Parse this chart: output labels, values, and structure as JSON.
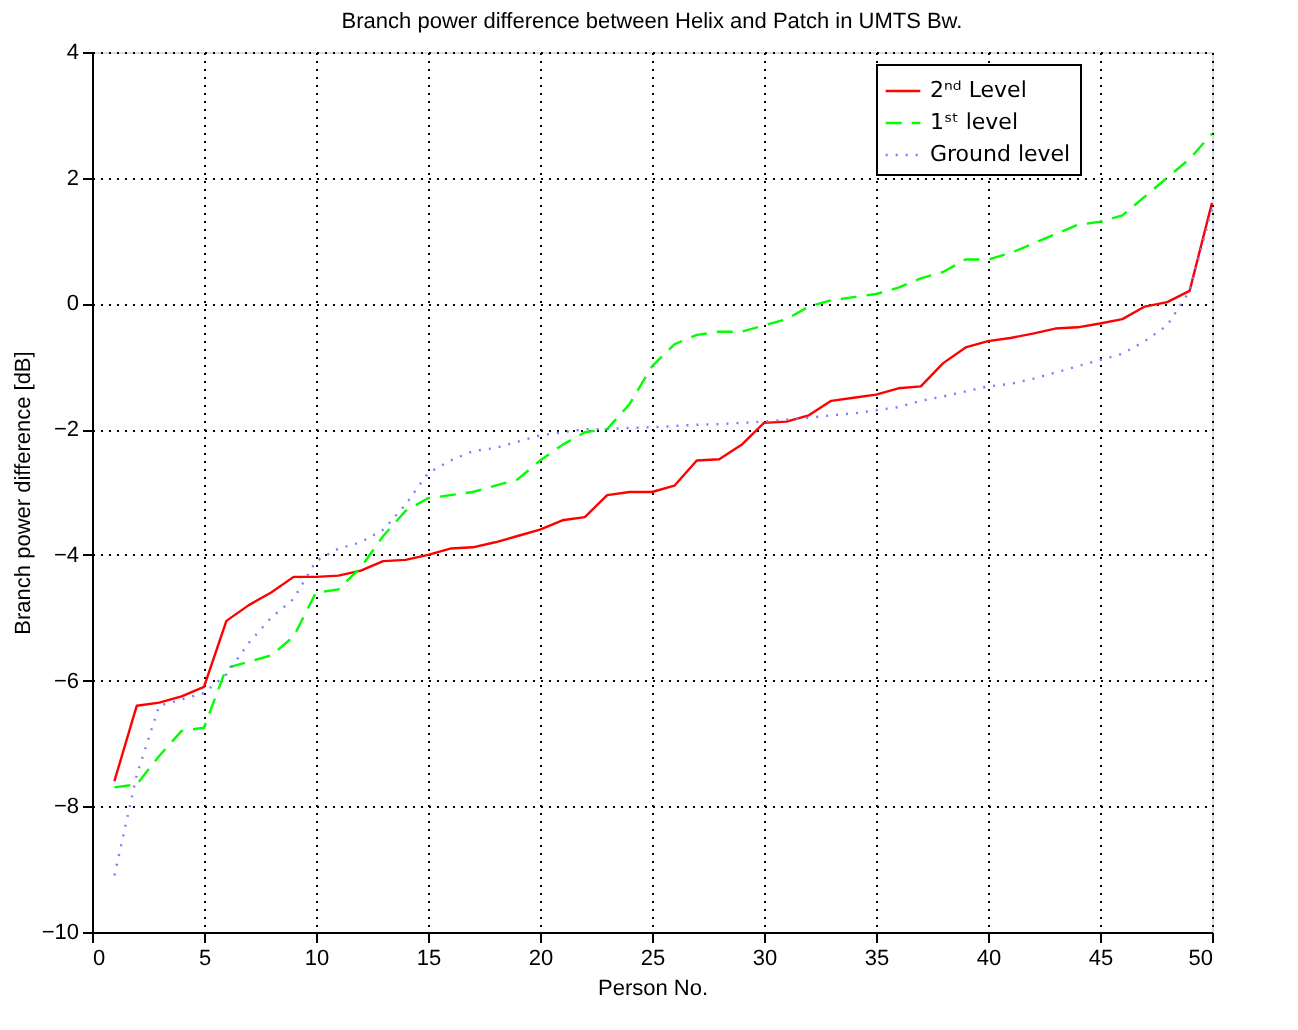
{
  "chart_data": {
    "type": "line",
    "title": "Branch power difference between Helix and Patch in UMTS Bw.",
    "xlabel": "Person No.",
    "ylabel": "Branch power difference [dB]",
    "x": [
      1,
      2,
      3,
      4,
      5,
      6,
      7,
      8,
      9,
      10,
      11,
      12,
      13,
      14,
      15,
      16,
      17,
      18,
      19,
      20,
      21,
      22,
      23,
      24,
      25,
      26,
      27,
      28,
      29,
      30,
      31,
      32,
      33,
      34,
      35,
      36,
      37,
      38,
      39,
      40,
      41,
      42,
      43,
      44,
      45,
      46,
      47,
      48,
      49,
      50
    ],
    "series": [
      {
        "name": "2ⁿᵈ Level",
        "color": "#ff0000",
        "line_style": "solid",
        "values": [
          -7.6,
          -6.4,
          -6.35,
          -6.25,
          -6.1,
          -5.05,
          -4.8,
          -4.6,
          -4.35,
          -4.35,
          -4.33,
          -4.25,
          -4.1,
          -4.08,
          -4.0,
          -3.9,
          -3.88,
          -3.8,
          -3.7,
          -3.6,
          -3.45,
          -3.4,
          -3.05,
          -3.0,
          -3.0,
          -2.9,
          -2.5,
          -2.48,
          -2.25,
          -1.9,
          -1.88,
          -1.78,
          -1.55,
          -1.5,
          -1.45,
          -1.35,
          -1.32,
          -0.95,
          -0.7,
          -0.6,
          -0.55,
          -0.48,
          -0.4,
          -0.38,
          -0.32,
          -0.25,
          -0.05,
          0.02,
          0.2,
          1.6
        ]
      },
      {
        "name": "1ˢᵗ level",
        "color": "#00ff00",
        "line_style": "dashed",
        "values": [
          -7.7,
          -7.65,
          -7.2,
          -6.8,
          -6.75,
          -5.8,
          -5.7,
          -5.6,
          -5.3,
          -4.6,
          -4.55,
          -4.2,
          -3.7,
          -3.3,
          -3.1,
          -3.05,
          -3.0,
          -2.9,
          -2.8,
          -2.5,
          -2.25,
          -2.05,
          -2.0,
          -1.6,
          -1.0,
          -0.65,
          -0.5,
          -0.45,
          -0.45,
          -0.35,
          -0.25,
          -0.05,
          0.05,
          0.1,
          0.15,
          0.25,
          0.4,
          0.5,
          0.7,
          0.7,
          0.8,
          0.95,
          1.1,
          1.25,
          1.3,
          1.4,
          1.7,
          2.0,
          2.3,
          2.7
        ]
      },
      {
        "name": "Ground level",
        "color": "#7b7bff",
        "line_style": "dotted",
        "values": [
          -9.1,
          -7.5,
          -6.4,
          -6.3,
          -6.2,
          -5.9,
          -5.4,
          -5.0,
          -4.7,
          -4.1,
          -3.9,
          -3.8,
          -3.6,
          -3.2,
          -2.7,
          -2.5,
          -2.35,
          -2.3,
          -2.2,
          -2.1,
          -2.05,
          -2.0,
          -2.0,
          -1.98,
          -1.97,
          -1.95,
          -1.93,
          -1.92,
          -1.9,
          -1.88,
          -1.85,
          -1.82,
          -1.78,
          -1.75,
          -1.7,
          -1.65,
          -1.55,
          -1.48,
          -1.4,
          -1.32,
          -1.28,
          -1.2,
          -1.1,
          -1.0,
          -0.9,
          -0.8,
          -0.6,
          -0.35,
          0.2,
          1.5
        ]
      }
    ],
    "xlim": [
      0,
      50
    ],
    "xticks": [
      0,
      5,
      10,
      15,
      20,
      25,
      30,
      35,
      40,
      45,
      50
    ],
    "ylim": [
      -10,
      4
    ],
    "yticks": [
      -10,
      -8,
      -6,
      -4,
      -2,
      0,
      2,
      4
    ],
    "grid": true,
    "legend": "top right",
    "marker": "none"
  }
}
